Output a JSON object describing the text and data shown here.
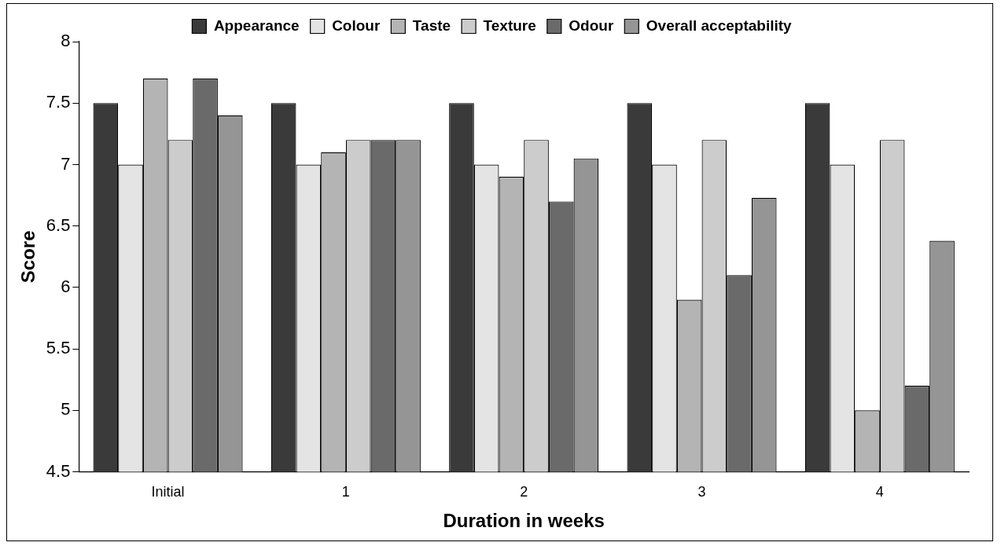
{
  "chart_data": {
    "type": "bar",
    "xlabel": "Duration in weeks",
    "ylabel": "Score",
    "categories": [
      "Initial",
      "1",
      "2",
      "3",
      "4"
    ],
    "series": [
      {
        "name": "Appearance",
        "color": "#3a3a3a",
        "values": [
          7.5,
          7.5,
          7.5,
          7.5,
          7.5
        ]
      },
      {
        "name": "Colour",
        "color": "#e4e4e4",
        "values": [
          7.0,
          7.0,
          7.0,
          7.0,
          7.0
        ]
      },
      {
        "name": "Taste",
        "color": "#b4b4b4",
        "values": [
          7.7,
          7.1,
          6.9,
          5.9,
          5.0
        ]
      },
      {
        "name": "Texture",
        "color": "#cccccc",
        "values": [
          7.2,
          7.2,
          7.2,
          7.2,
          7.2
        ]
      },
      {
        "name": "Odour",
        "color": "#6a6a6a",
        "values": [
          7.7,
          7.2,
          6.7,
          6.1,
          5.2
        ]
      },
      {
        "name": "Overall acceptability",
        "color": "#959595",
        "values": [
          7.4,
          7.2,
          7.05,
          6.73,
          6.38
        ]
      }
    ],
    "ylim": [
      4.5,
      8
    ],
    "yticks": [
      4.5,
      5,
      5.5,
      6,
      6.5,
      7,
      7.5,
      8
    ],
    "grid": false,
    "legend": "top"
  }
}
